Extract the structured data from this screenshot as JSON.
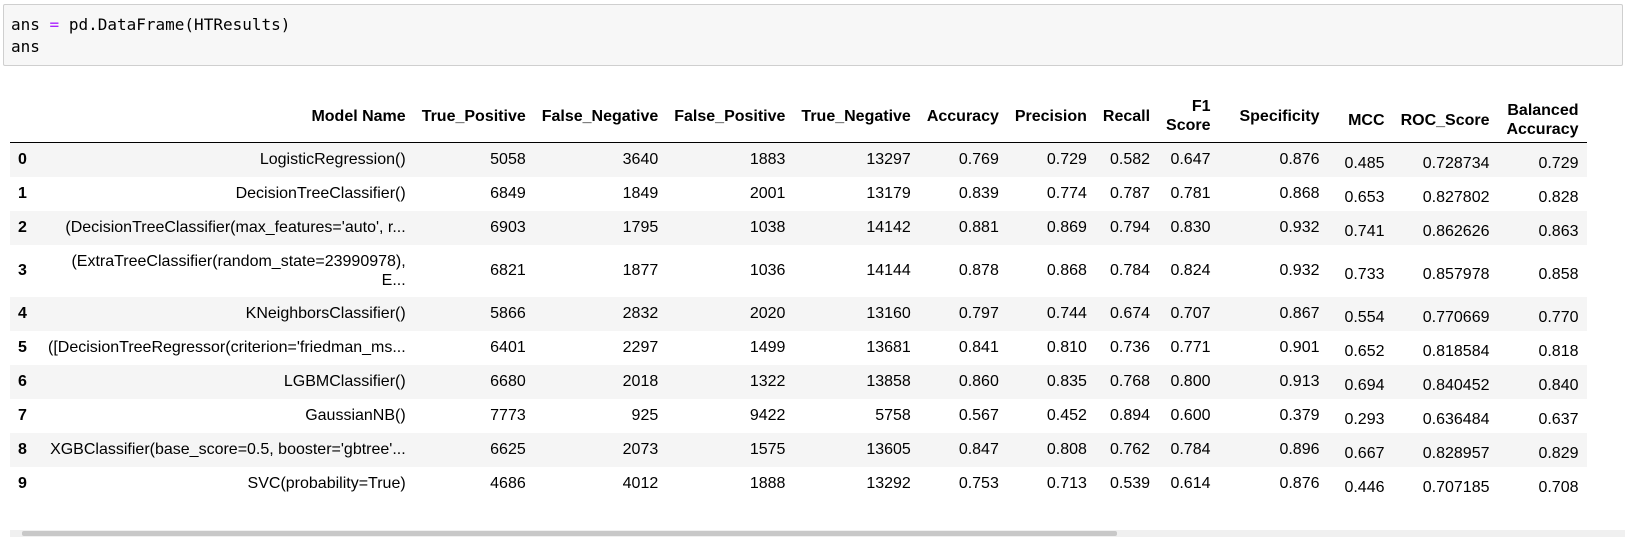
{
  "code": {
    "line1_var": "ans",
    "line1_op": "=",
    "line1_expr": "pd.DataFrame(HTResults)",
    "line2": "ans"
  },
  "table": {
    "columns": [
      "",
      "Model Name",
      "True_Positive",
      "False_Negative",
      "False_Positive",
      "True_Negative",
      "Accuracy",
      "Precision",
      "Recall",
      "F1 Score",
      "Specificity",
      "MCC",
      "ROC_Score",
      "Balanced Accuracy"
    ],
    "rows": [
      [
        "0",
        "LogisticRegression()",
        "5058",
        "3640",
        "1883",
        "13297",
        "0.769",
        "0.729",
        "0.582",
        "0.647",
        "0.876",
        "0.485",
        "0.728734",
        "0.729"
      ],
      [
        "1",
        "DecisionTreeClassifier()",
        "6849",
        "1849",
        "2001",
        "13179",
        "0.839",
        "0.774",
        "0.787",
        "0.781",
        "0.868",
        "0.653",
        "0.827802",
        "0.828"
      ],
      [
        "2",
        "(DecisionTreeClassifier(max_features='auto', r...",
        "6903",
        "1795",
        "1038",
        "14142",
        "0.881",
        "0.869",
        "0.794",
        "0.830",
        "0.932",
        "0.741",
        "0.862626",
        "0.863"
      ],
      [
        "3",
        "(ExtraTreeClassifier(random_state=23990978), E...",
        "6821",
        "1877",
        "1036",
        "14144",
        "0.878",
        "0.868",
        "0.784",
        "0.824",
        "0.932",
        "0.733",
        "0.857978",
        "0.858"
      ],
      [
        "4",
        "KNeighborsClassifier()",
        "5866",
        "2832",
        "2020",
        "13160",
        "0.797",
        "0.744",
        "0.674",
        "0.707",
        "0.867",
        "0.554",
        "0.770669",
        "0.770"
      ],
      [
        "5",
        "([DecisionTreeRegressor(criterion='friedman_ms...",
        "6401",
        "2297",
        "1499",
        "13681",
        "0.841",
        "0.810",
        "0.736",
        "0.771",
        "0.901",
        "0.652",
        "0.818584",
        "0.818"
      ],
      [
        "6",
        "LGBMClassifier()",
        "6680",
        "2018",
        "1322",
        "13858",
        "0.860",
        "0.835",
        "0.768",
        "0.800",
        "0.913",
        "0.694",
        "0.840452",
        "0.840"
      ],
      [
        "7",
        "GaussianNB()",
        "7773",
        "925",
        "9422",
        "5758",
        "0.567",
        "0.452",
        "0.894",
        "0.600",
        "0.379",
        "0.293",
        "0.636484",
        "0.637"
      ],
      [
        "8",
        "XGBClassifier(base_score=0.5, booster='gbtree'...",
        "6625",
        "2073",
        "1575",
        "13605",
        "0.847",
        "0.808",
        "0.762",
        "0.784",
        "0.896",
        "0.667",
        "0.828957",
        "0.829"
      ],
      [
        "9",
        "SVC(probability=True)",
        "4686",
        "4012",
        "1888",
        "13292",
        "0.753",
        "0.713",
        "0.539",
        "0.614",
        "0.876",
        "0.446",
        "0.707185",
        "0.708"
      ]
    ]
  }
}
